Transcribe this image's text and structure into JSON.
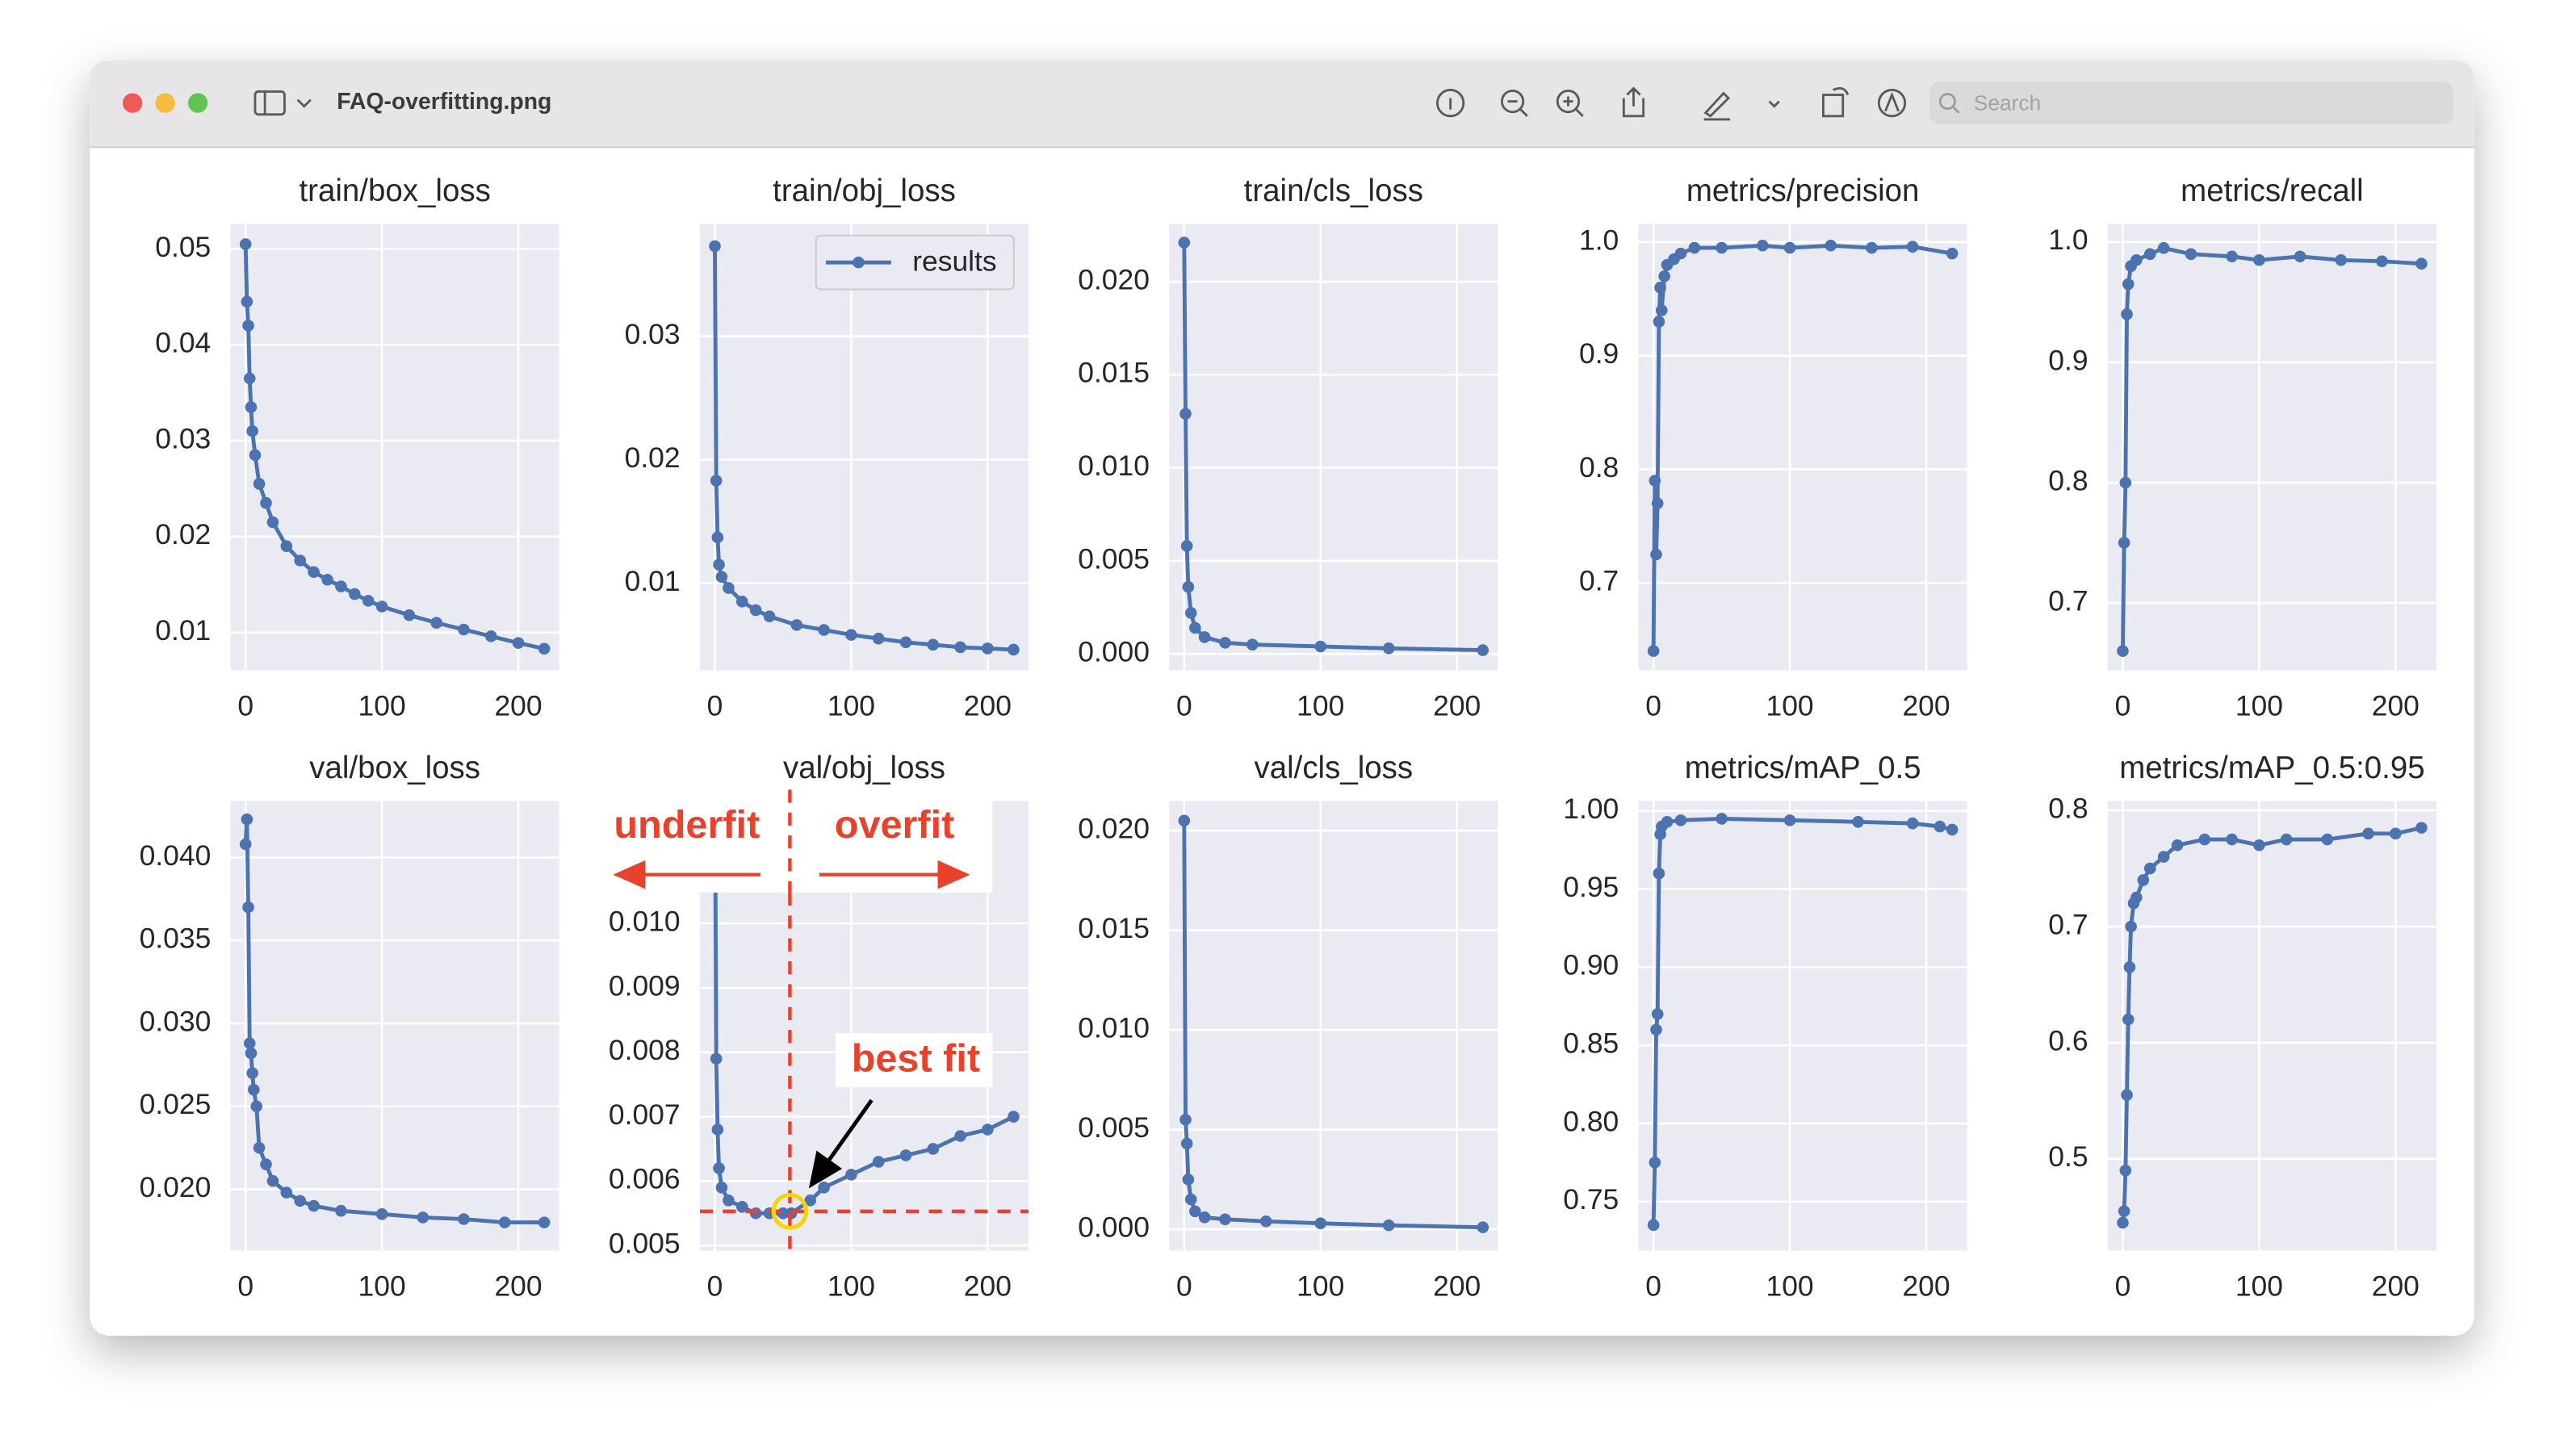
{
  "window": {
    "title": "FAQ-overfitting.png",
    "search_placeholder": "Search"
  },
  "chart_data": [
    {
      "type": "line",
      "title": "train/box_loss",
      "x": [
        0,
        1,
        2,
        3,
        4,
        5,
        7,
        10,
        15,
        20,
        30,
        40,
        50,
        60,
        70,
        80,
        90,
        100,
        120,
        140,
        160,
        180,
        200,
        219
      ],
      "series": [
        {
          "color": "#4c72b0",
          "values": [
            0.0505,
            0.0445,
            0.042,
            0.0365,
            0.0335,
            0.031,
            0.0285,
            0.0255,
            0.0235,
            0.0215,
            0.019,
            0.0175,
            0.0163,
            0.0155,
            0.0148,
            0.014,
            0.0133,
            0.0127,
            0.0118,
            0.011,
            0.0103,
            0.0096,
            0.0089,
            0.0083
          ]
        }
      ],
      "xlim": [
        -11,
        230
      ],
      "xticks": [
        0,
        100,
        200
      ],
      "ylim": [
        0.00605,
        0.0526
      ],
      "yticks": [
        0.01,
        0.02,
        0.03,
        0.04,
        0.05
      ],
      "grid": true
    },
    {
      "type": "line",
      "title": "train/obj_loss",
      "x": [
        0,
        1,
        2,
        3,
        5,
        10,
        20,
        30,
        40,
        60,
        80,
        100,
        120,
        140,
        160,
        180,
        200,
        219
      ],
      "series": [
        {
          "name": "results",
          "color": "#4c72b0",
          "values": [
            0.0373,
            0.0183,
            0.0137,
            0.0115,
            0.0105,
            0.0096,
            0.0085,
            0.0078,
            0.0073,
            0.0066,
            0.0062,
            0.0058,
            0.0055,
            0.0052,
            0.005,
            0.0048,
            0.0047,
            0.0046
          ]
        }
      ],
      "xlim": [
        -11,
        230
      ],
      "xticks": [
        0,
        100,
        200
      ],
      "ylim": [
        0.00293,
        0.0391
      ],
      "yticks": [
        0.01,
        0.02,
        0.03
      ],
      "grid": true,
      "legend": "upper right"
    },
    {
      "type": "line",
      "title": "train/cls_loss",
      "x": [
        0,
        1,
        2,
        3,
        5,
        8,
        15,
        30,
        50,
        100,
        150,
        219
      ],
      "series": [
        {
          "color": "#4c72b0",
          "values": [
            0.0221,
            0.0129,
            0.0058,
            0.0036,
            0.0022,
            0.0014,
            0.0009,
            0.0006,
            0.0005,
            0.0004,
            0.0003,
            0.0002
          ]
        }
      ],
      "xlim": [
        -11,
        230
      ],
      "xticks": [
        0,
        100,
        200
      ],
      "ylim": [
        -0.00088,
        0.0231
      ],
      "yticks": [
        {
          "value": 0,
          "label": "0.000"
        },
        0.005,
        {
          "value": 0.01,
          "label": "0.010"
        },
        0.015,
        {
          "value": 0.02,
          "label": "0.020"
        }
      ],
      "grid": true
    },
    {
      "type": "line",
      "title": "metrics/precision",
      "x": [
        0,
        1,
        2,
        3,
        4,
        5,
        6,
        8,
        10,
        15,
        20,
        30,
        50,
        80,
        100,
        130,
        160,
        190,
        219
      ],
      "series": [
        {
          "color": "#4c72b0",
          "values": [
            0.64,
            0.79,
            0.725,
            0.77,
            0.93,
            0.96,
            0.94,
            0.97,
            0.98,
            0.985,
            0.99,
            0.995,
            0.995,
            0.997,
            0.995,
            0.997,
            0.995,
            0.996,
            0.99
          ]
        }
      ],
      "xlim": [
        -11,
        230
      ],
      "xticks": [
        0,
        100,
        200
      ],
      "ylim": [
        0.623,
        1.016
      ],
      "yticks": [
        0.7,
        0.8,
        0.9,
        {
          "value": 1,
          "label": "1.0"
        }
      ],
      "grid": true
    },
    {
      "type": "line",
      "title": "metrics/recall",
      "x": [
        0,
        1,
        2,
        3,
        4,
        6,
        10,
        20,
        30,
        50,
        80,
        100,
        130,
        160,
        190,
        219
      ],
      "series": [
        {
          "color": "#4c72b0",
          "values": [
            0.66,
            0.75,
            0.8,
            0.94,
            0.965,
            0.98,
            0.985,
            0.99,
            0.995,
            0.99,
            0.988,
            0.985,
            0.988,
            0.985,
            0.984,
            0.982
          ]
        }
      ],
      "xlim": [
        -11,
        230
      ],
      "xticks": [
        0,
        100,
        200
      ],
      "ylim": [
        0.644,
        1.015
      ],
      "yticks": [
        0.7,
        0.8,
        0.9,
        {
          "value": 1,
          "label": "1.0"
        }
      ],
      "grid": true
    },
    {
      "type": "line",
      "title": "val/box_loss",
      "x": [
        0,
        1,
        2,
        3,
        4,
        5,
        6,
        8,
        10,
        15,
        20,
        30,
        40,
        50,
        70,
        100,
        130,
        160,
        190,
        219
      ],
      "series": [
        {
          "color": "#4c72b0",
          "values": [
            0.0408,
            0.0423,
            0.037,
            0.0288,
            0.0282,
            0.027,
            0.026,
            0.025,
            0.0225,
            0.0215,
            0.0205,
            0.0198,
            0.0193,
            0.019,
            0.0187,
            0.0185,
            0.0183,
            0.0182,
            0.018,
            0.018
          ]
        }
      ],
      "xlim": [
        -11,
        230
      ],
      "xticks": [
        0,
        100,
        200
      ],
      "ylim": [
        0.0163,
        0.0434
      ],
      "yticks": [
        {
          "value": 0.02,
          "label": "0.020"
        },
        0.025,
        {
          "value": 0.03,
          "label": "0.030"
        },
        0.035,
        {
          "value": 0.04,
          "label": "0.040"
        }
      ],
      "grid": true
    },
    {
      "type": "line",
      "title": "val/obj_loss",
      "x": [
        0,
        1,
        2,
        3,
        5,
        10,
        20,
        30,
        40,
        50,
        56,
        70,
        80,
        100,
        120,
        140,
        160,
        180,
        200,
        219
      ],
      "series": [
        {
          "color": "#4c72b0",
          "values": [
            0.0125,
            0.0079,
            0.0068,
            0.0062,
            0.0059,
            0.0057,
            0.0056,
            0.0055,
            0.0055,
            0.0055,
            0.0055,
            0.0057,
            0.0059,
            0.0061,
            0.0063,
            0.0064,
            0.0065,
            0.0067,
            0.0068,
            0.007
          ]
        }
      ],
      "xlim": [
        -11,
        230
      ],
      "xticks": [
        0,
        100,
        200
      ],
      "ylim": [
        0.00492,
        0.0119
      ],
      "yticks": [
        0.005,
        0.006,
        0.007,
        0.008,
        0.009,
        {
          "value": 0.01,
          "label": "0.010"
        }
      ],
      "grid": true,
      "annotations": [
        {
          "text": "underfit"
        },
        {
          "text": "overfit"
        },
        {
          "text": "best fit"
        }
      ],
      "best_fit": {
        "x": 55,
        "y": 0.00553
      }
    },
    {
      "type": "line",
      "title": "val/cls_loss",
      "x": [
        0,
        1,
        2,
        3,
        5,
        8,
        15,
        30,
        60,
        100,
        150,
        219
      ],
      "series": [
        {
          "color": "#4c72b0",
          "values": [
            0.0205,
            0.0055,
            0.0043,
            0.0025,
            0.0015,
            0.0009,
            0.0006,
            0.0005,
            0.0004,
            0.0003,
            0.0002,
            0.0001
          ]
        }
      ],
      "xlim": [
        -11,
        230
      ],
      "xticks": [
        0,
        100,
        200
      ],
      "ylim": [
        -0.00107,
        0.02148
      ],
      "yticks": [
        {
          "value": 0,
          "label": "0.000"
        },
        0.005,
        {
          "value": 0.01,
          "label": "0.010"
        },
        0.015,
        {
          "value": 0.02,
          "label": "0.020"
        }
      ],
      "grid": true
    },
    {
      "type": "line",
      "title": "metrics/mAP_0.5",
      "x": [
        0,
        1,
        2,
        3,
        4,
        5,
        6,
        10,
        20,
        50,
        100,
        150,
        190,
        210,
        219
      ],
      "series": [
        {
          "color": "#4c72b0",
          "values": [
            0.735,
            0.775,
            0.86,
            0.87,
            0.96,
            0.985,
            0.99,
            0.993,
            0.994,
            0.995,
            0.994,
            0.993,
            0.992,
            0.99,
            0.988
          ]
        }
      ],
      "xlim": [
        -11,
        230
      ],
      "xticks": [
        0,
        100,
        200
      ],
      "ylim": [
        0.7186,
        1.0063
      ],
      "yticks": [
        0.75,
        {
          "value": 0.8,
          "label": "0.80"
        },
        0.85,
        {
          "value": 0.9,
          "label": "0.90"
        },
        0.95,
        {
          "value": 1,
          "label": "1.00"
        }
      ],
      "grid": true
    },
    {
      "type": "line",
      "title": "metrics/mAP_0.5:0.95",
      "x": [
        0,
        1,
        2,
        3,
        4,
        5,
        6,
        8,
        10,
        15,
        20,
        30,
        40,
        60,
        80,
        100,
        120,
        150,
        180,
        200,
        219
      ],
      "series": [
        {
          "color": "#4c72b0",
          "values": [
            0.445,
            0.455,
            0.49,
            0.555,
            0.62,
            0.665,
            0.7,
            0.72,
            0.725,
            0.74,
            0.75,
            0.76,
            0.77,
            0.775,
            0.775,
            0.77,
            0.775,
            0.775,
            0.78,
            0.78,
            0.785
          ]
        }
      ],
      "xlim": [
        -11,
        230
      ],
      "xticks": [
        0,
        100,
        200
      ],
      "ylim": [
        0.421,
        0.808
      ],
      "yticks": [
        0.5,
        0.6,
        0.7,
        0.8
      ],
      "grid": true
    }
  ]
}
